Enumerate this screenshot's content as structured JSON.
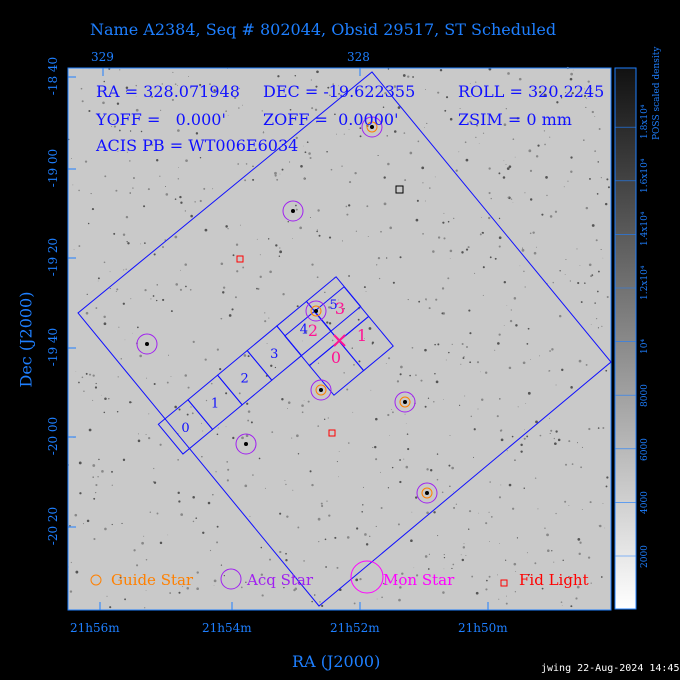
{
  "title": "Name A2384, Seq # 802044, Obsid 29517, ST Scheduled",
  "top_ticks": [
    "329",
    "328"
  ],
  "dec_ticks": [
    "-18 40",
    "-19 00",
    "-19 20",
    "-19 40",
    "-20 00",
    "-20 20"
  ],
  "ra_ticks": [
    "21h56m",
    "21h54m",
    "21h52m",
    "21h50m"
  ],
  "xlabel": "RA (J2000)",
  "ylabel": "Dec (J2000)",
  "info": {
    "ra": "RA = 328.071948",
    "dec": "DEC = -19.622355",
    "roll": "ROLL = 320.2245",
    "yoff": "YOFF =   0.000'",
    "zoff": "ZOFF =  0.0000'",
    "zsim": "ZSIM = 0 mm",
    "acis": "ACIS PB = WT006E6034"
  },
  "chips_s": [
    "0",
    "1",
    "2",
    "3",
    "4",
    "5"
  ],
  "chips_i": [
    "0",
    "1",
    "2",
    "3"
  ],
  "legend": {
    "guide": "Guide Star",
    "acq": "Acq Star",
    "mon": "Mon Star",
    "fid": "Fid Light"
  },
  "colorbar": {
    "label": "POSS scaled density",
    "ticks": [
      "2000",
      "4000",
      "6000",
      "8000",
      "10⁴",
      "1.2x10⁴",
      "1.4x10⁴",
      "1.6x10⁴",
      "1.8x10⁴"
    ]
  },
  "footer": "jwing 22-Aug-2024 14:45",
  "colors": {
    "axis": "#1e7fff",
    "overlay": "#1010ff",
    "guide": "#ff8000",
    "acq": "#a020f0",
    "mon": "#ff00ff",
    "fid": "#ff0000",
    "i_labels": "#ff1493"
  }
}
